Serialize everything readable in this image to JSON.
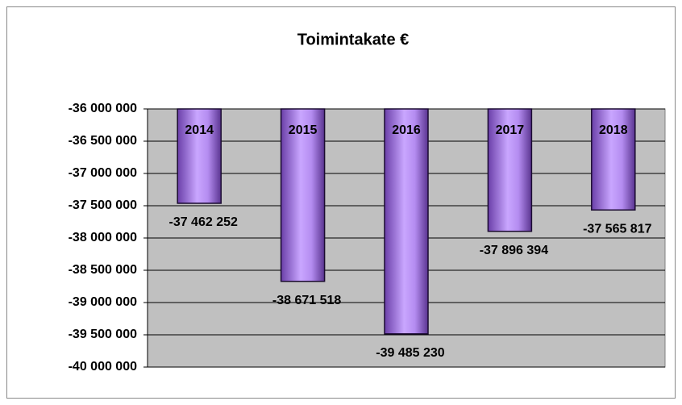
{
  "chart_data": {
    "type": "bar",
    "title": "Toimintakate €",
    "categories": [
      "2014",
      "2015",
      "2016",
      "2017",
      "2018"
    ],
    "values": [
      -37462252,
      -38671518,
      -39485230,
      -37896394,
      -37565817
    ],
    "value_labels": [
      "-37 462 252",
      "-38 671 518",
      "-39 485 230",
      "-37 896 394",
      "-37 565 817"
    ],
    "color": "#b68fe8",
    "ylim": [
      -40000000,
      -36000000
    ],
    "yticks": [
      {
        "value": -40000000,
        "label": "-40 000 000"
      },
      {
        "value": -39500000,
        "label": "-39 500 000"
      },
      {
        "value": -39000000,
        "label": "-39 000 000"
      },
      {
        "value": -38500000,
        "label": "-38 500 000"
      },
      {
        "value": -38000000,
        "label": "-38 000 000"
      },
      {
        "value": -37500000,
        "label": "-37 500 000"
      },
      {
        "value": -37000000,
        "label": "-37 000 000"
      },
      {
        "value": -36500000,
        "label": "-36 500 000"
      },
      {
        "value": -36000000,
        "label": "-36 000 000"
      }
    ],
    "grid": true
  }
}
